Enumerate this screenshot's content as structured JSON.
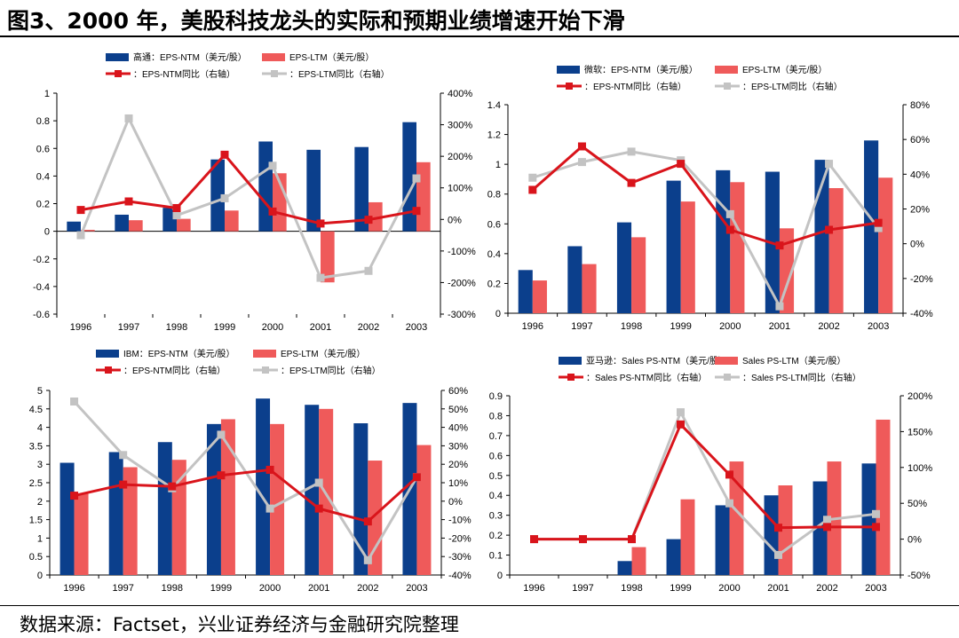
{
  "title": "图3、2000 年，美股科技龙头的实际和预期业绩增速开始下滑",
  "source": "数据来源：Factset，兴业证券经济与金融研究院整理",
  "colors": {
    "ntm_bar": "#0b3f8c",
    "ltm_bar": "#ef5a5a",
    "ntm_line": "#d9141b",
    "ltm_line": "#c3c3c3"
  },
  "chart_data": [
    {
      "type": "bar",
      "categories": [
        "1996",
        "1997",
        "1998",
        "1999",
        "2000",
        "2001",
        "2002",
        "2003"
      ],
      "series": [
        {
          "name": "高通：EPS-NTM（美元/股）",
          "kind": "bar",
          "axis": "left",
          "values": [
            0.07,
            0.12,
            0.17,
            0.52,
            0.65,
            0.59,
            0.61,
            0.79
          ]
        },
        {
          "name": "EPS-LTM（美元/股）",
          "kind": "bar",
          "axis": "left",
          "values": [
            0.01,
            0.08,
            0.09,
            0.15,
            0.42,
            -0.37,
            0.21,
            0.5
          ]
        },
        {
          "name": "：EPS-NTM同比（右轴）",
          "kind": "line",
          "axis": "right",
          "values": [
            30,
            57,
            36,
            205,
            25,
            -13,
            -1,
            27
          ]
        },
        {
          "name": "：EPS-LTM同比（右轴）",
          "kind": "line",
          "axis": "right",
          "values": [
            -50,
            320,
            13,
            67,
            170,
            -185,
            -163,
            130
          ]
        }
      ],
      "ylim": [
        -0.6,
        1
      ],
      "yticks": [
        "-0.6",
        "-0.4",
        "-0.2",
        "0",
        "0.2",
        "0.4",
        "0.6",
        "0.8",
        "1"
      ],
      "y2lim": [
        -300,
        400
      ],
      "y2ticks": [
        "-300%",
        "-200%",
        "-100%",
        "0%",
        "100%",
        "200%",
        "300%",
        "400%"
      ]
    },
    {
      "type": "bar",
      "categories": [
        "1996",
        "1997",
        "1998",
        "1999",
        "2000",
        "2001",
        "2002",
        "2003"
      ],
      "series": [
        {
          "name": "微软：EPS-NTM（美元/股）",
          "kind": "bar",
          "axis": "left",
          "values": [
            0.29,
            0.45,
            0.61,
            0.89,
            0.96,
            0.95,
            1.03,
            1.16
          ]
        },
        {
          "name": "EPS-LTM（美元/股）",
          "kind": "bar",
          "axis": "left",
          "values": [
            0.22,
            0.33,
            0.51,
            0.75,
            0.88,
            0.57,
            0.84,
            0.91
          ]
        },
        {
          "name": "：EPS-NTM同比（右轴）",
          "kind": "line",
          "axis": "right",
          "values": [
            31,
            56,
            35,
            46,
            8,
            -1,
            8,
            12
          ]
        },
        {
          "name": "：EPS-LTM同比（右轴）",
          "kind": "line",
          "axis": "right",
          "values": [
            38,
            47,
            53,
            48,
            17,
            -36,
            46,
            9
          ]
        }
      ],
      "ylim": [
        0,
        1.4
      ],
      "yticks": [
        "0",
        "0.2",
        "0.4",
        "0.6",
        "0.8",
        "1",
        "1.2",
        "1.4"
      ],
      "y2lim": [
        -40,
        80
      ],
      "y2ticks": [
        "-40%",
        "-20%",
        "0%",
        "20%",
        "40%",
        "60%",
        "80%"
      ]
    },
    {
      "type": "bar",
      "categories": [
        "1996",
        "1997",
        "1998",
        "1999",
        "2000",
        "2001",
        "2002",
        "2003"
      ],
      "series": [
        {
          "name": "IBM：EPS-NTM（美元/股）",
          "kind": "bar",
          "axis": "left",
          "values": [
            3.04,
            3.33,
            3.6,
            4.09,
            4.78,
            4.61,
            4.11,
            4.66
          ]
        },
        {
          "name": "EPS-LTM（美元/股）",
          "kind": "bar",
          "axis": "left",
          "values": [
            2.2,
            2.92,
            3.12,
            4.22,
            4.09,
            4.5,
            3.1,
            3.52
          ]
        },
        {
          "name": "：EPS-NTM同比（右轴）",
          "kind": "line",
          "axis": "right",
          "values": [
            3,
            9,
            8,
            14,
            17,
            -4,
            -11,
            13
          ]
        },
        {
          "name": "：EPS-LTM同比（右轴）",
          "kind": "line",
          "axis": "right",
          "values": [
            54,
            25,
            7,
            36,
            -4,
            10,
            -32,
            13
          ]
        }
      ],
      "ylim": [
        0,
        5
      ],
      "yticks": [
        "0",
        "0.5",
        "1",
        "1.5",
        "2",
        "2.5",
        "3",
        "3.5",
        "4",
        "4.5",
        "5"
      ],
      "y2lim": [
        -40,
        60
      ],
      "y2ticks": [
        "-40%",
        "-30%",
        "-20%",
        "-10%",
        "0%",
        "10%",
        "20%",
        "30%",
        "40%",
        "50%",
        "60%"
      ]
    },
    {
      "type": "bar",
      "categories": [
        "1996",
        "1997",
        "1998",
        "1999",
        "2000",
        "2001",
        "2002",
        "2003"
      ],
      "series": [
        {
          "name": "亚马逊：Sales PS-NTM（美元/股）",
          "kind": "bar",
          "axis": "left",
          "values": [
            null,
            null,
            0.07,
            0.18,
            0.35,
            0.4,
            0.47,
            0.56
          ]
        },
        {
          "name": "Sales PS-LTM（美元/股）",
          "kind": "bar",
          "axis": "left",
          "values": [
            null,
            null,
            0.14,
            0.38,
            0.57,
            0.45,
            0.57,
            0.78
          ]
        },
        {
          "name": "：Sales PS-NTM同比（右轴）",
          "kind": "line",
          "axis": "right",
          "values": [
            0,
            0,
            0,
            160,
            90,
            16,
            17,
            17
          ]
        },
        {
          "name": "：Sales PS-LTM同比（右轴）",
          "kind": "line",
          "axis": "right",
          "values": [
            0,
            0,
            0,
            177,
            50,
            -22,
            27,
            35
          ]
        }
      ],
      "ylim": [
        0,
        0.9
      ],
      "yticks": [
        "0",
        "0.1",
        "0.2",
        "0.3",
        "0.4",
        "0.5",
        "0.6",
        "0.7",
        "0.8",
        "0.9"
      ],
      "y2lim": [
        -50,
        200
      ],
      "y2ticks": [
        "-50%",
        "0%",
        "50%",
        "100%",
        "150%",
        "200%"
      ]
    }
  ]
}
